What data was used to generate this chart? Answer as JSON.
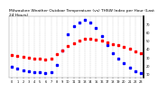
{
  "title": "Milwaukee Weather Outdoor Temperature (vs) THSW Index per Hour (Last 24 Hours)",
  "hours": [
    0,
    1,
    2,
    3,
    4,
    5,
    6,
    7,
    8,
    9,
    10,
    11,
    12,
    13,
    14,
    15,
    16,
    17,
    18,
    19,
    20,
    21,
    22,
    23
  ],
  "temp": [
    32,
    31,
    30,
    29,
    28,
    28,
    27,
    28,
    33,
    38,
    43,
    47,
    50,
    52,
    52,
    51,
    50,
    48,
    46,
    44,
    42,
    40,
    37,
    35
  ],
  "thsw": [
    18,
    16,
    14,
    13,
    12,
    11,
    10,
    11,
    20,
    38,
    58,
    68,
    72,
    75,
    72,
    65,
    55,
    44,
    35,
    28,
    22,
    17,
    13,
    10
  ],
  "temp_color": "#ff0000",
  "thsw_color": "#0000ff",
  "bg_color": "#ffffff",
  "grid_color": "#999999",
  "ylim": [
    5,
    80
  ],
  "ytick_values": [
    10,
    20,
    30,
    40,
    50,
    60,
    70
  ],
  "ytick_labels": [
    "10",
    "20",
    "30",
    "40",
    "50",
    "60",
    "70"
  ],
  "title_fontsize": 3.2,
  "tick_fontsize": 2.5,
  "marker_size": 1.8,
  "line_width": 0.5
}
